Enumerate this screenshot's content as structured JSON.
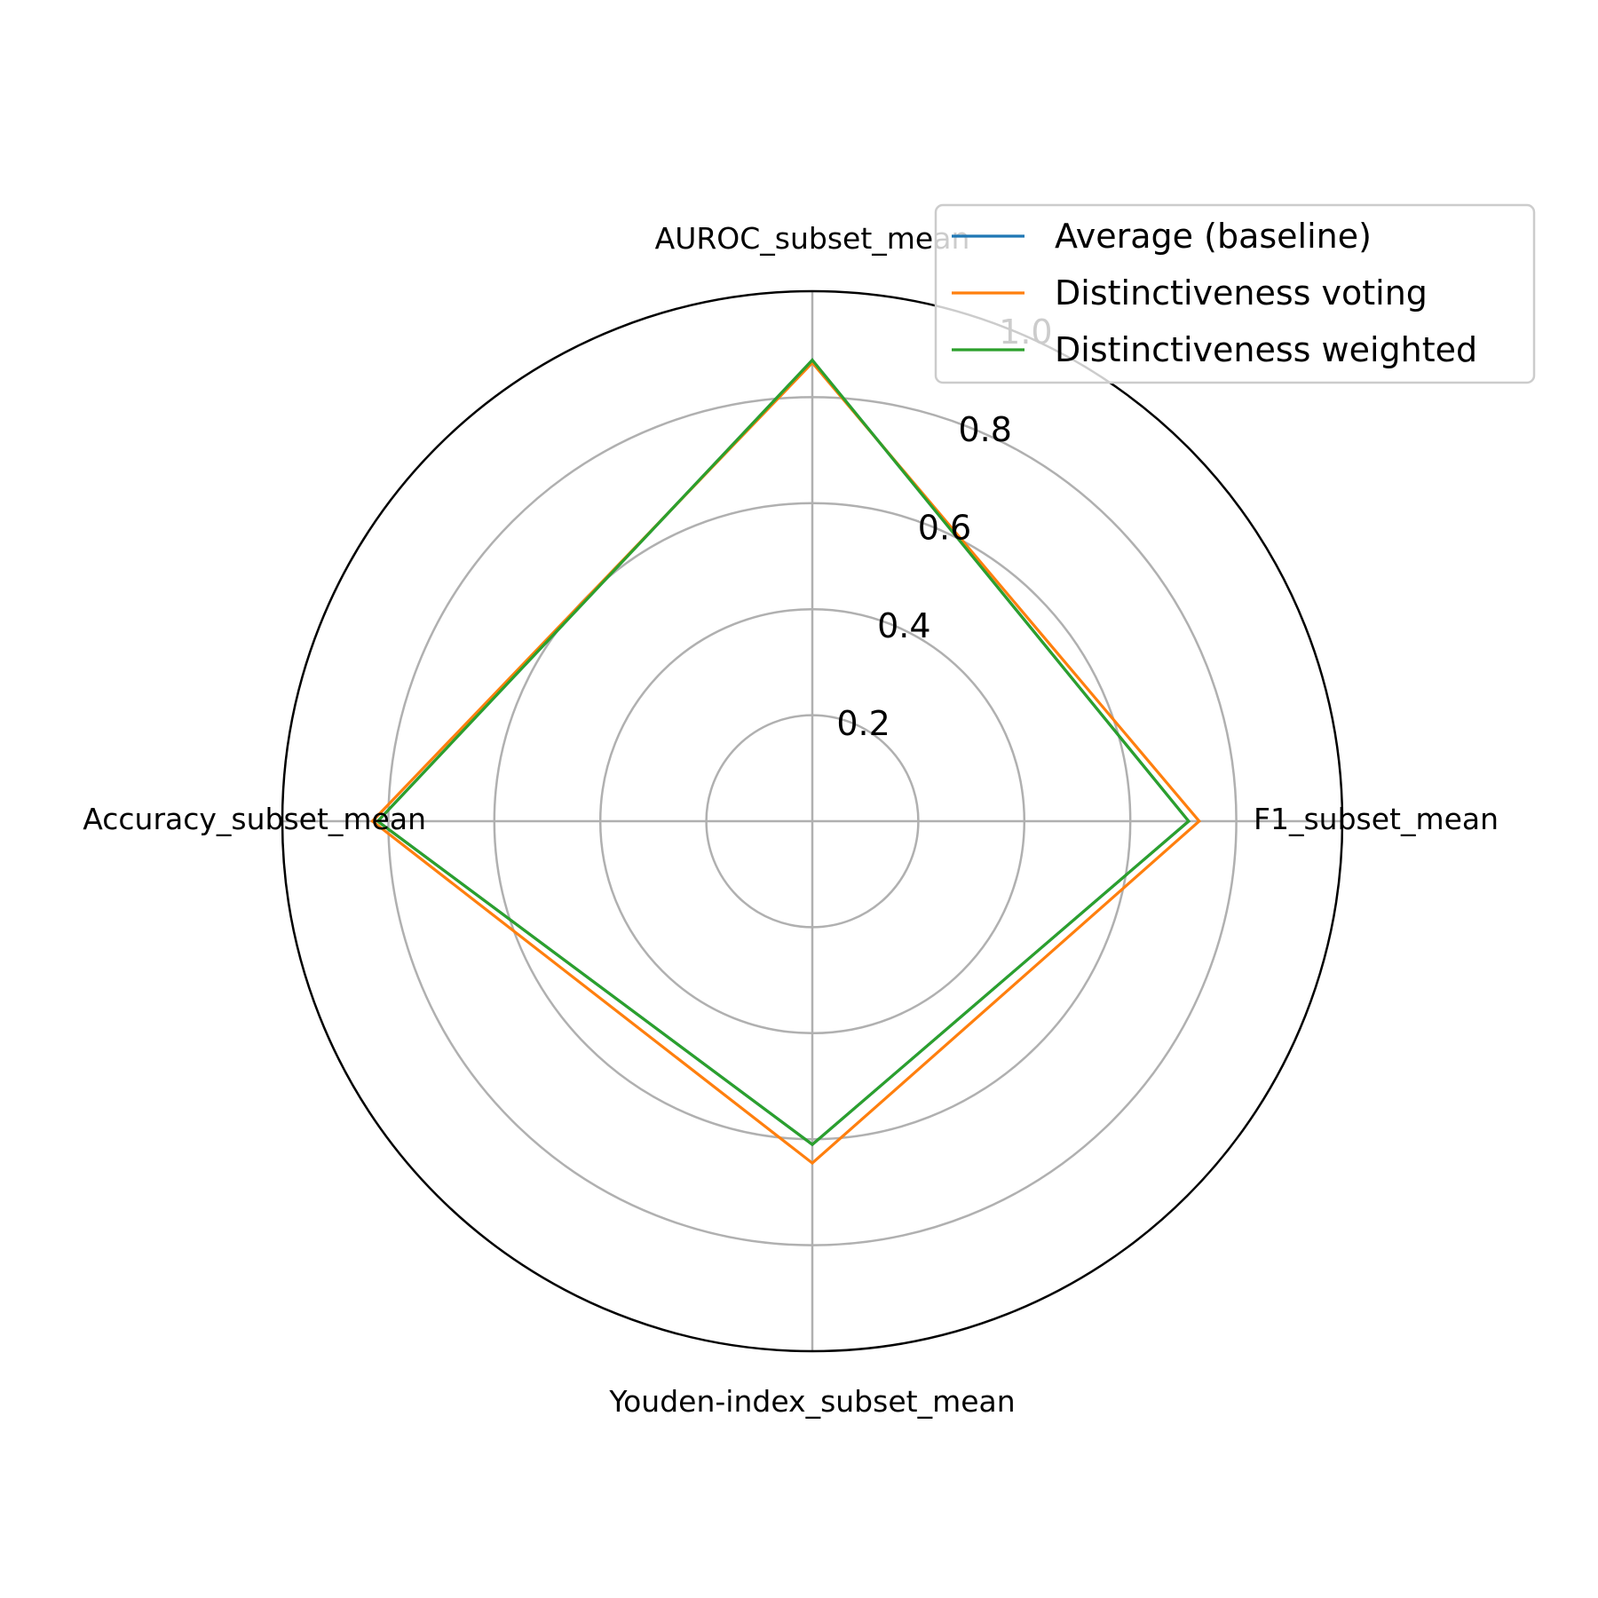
{
  "chart_data": {
    "type": "radar",
    "axes": [
      "AUROC_subset_mean",
      "F1_subset_mean",
      "Youden-index_subset_mean",
      "Accuracy_subset_mean"
    ],
    "rlim": [
      0,
      1.0
    ],
    "rticks": [
      0.2,
      0.4,
      0.6,
      0.8,
      1.0
    ],
    "rtick_labels": [
      "0.2",
      "0.4",
      "0.6",
      "0.8",
      "1.0"
    ],
    "grid": true,
    "legend_position": "top-right",
    "series": [
      {
        "name": "Average (baseline)",
        "color": "#1f77b4",
        "values": [
          0.87,
          0.71,
          0.61,
          0.82
        ]
      },
      {
        "name": "Distinctiveness voting",
        "color": "#ff7f0e",
        "values": [
          0.865,
          0.73,
          0.645,
          0.83
        ]
      },
      {
        "name": "Distinctiveness weighted",
        "color": "#2ca02c",
        "values": [
          0.87,
          0.71,
          0.61,
          0.82
        ]
      }
    ]
  }
}
